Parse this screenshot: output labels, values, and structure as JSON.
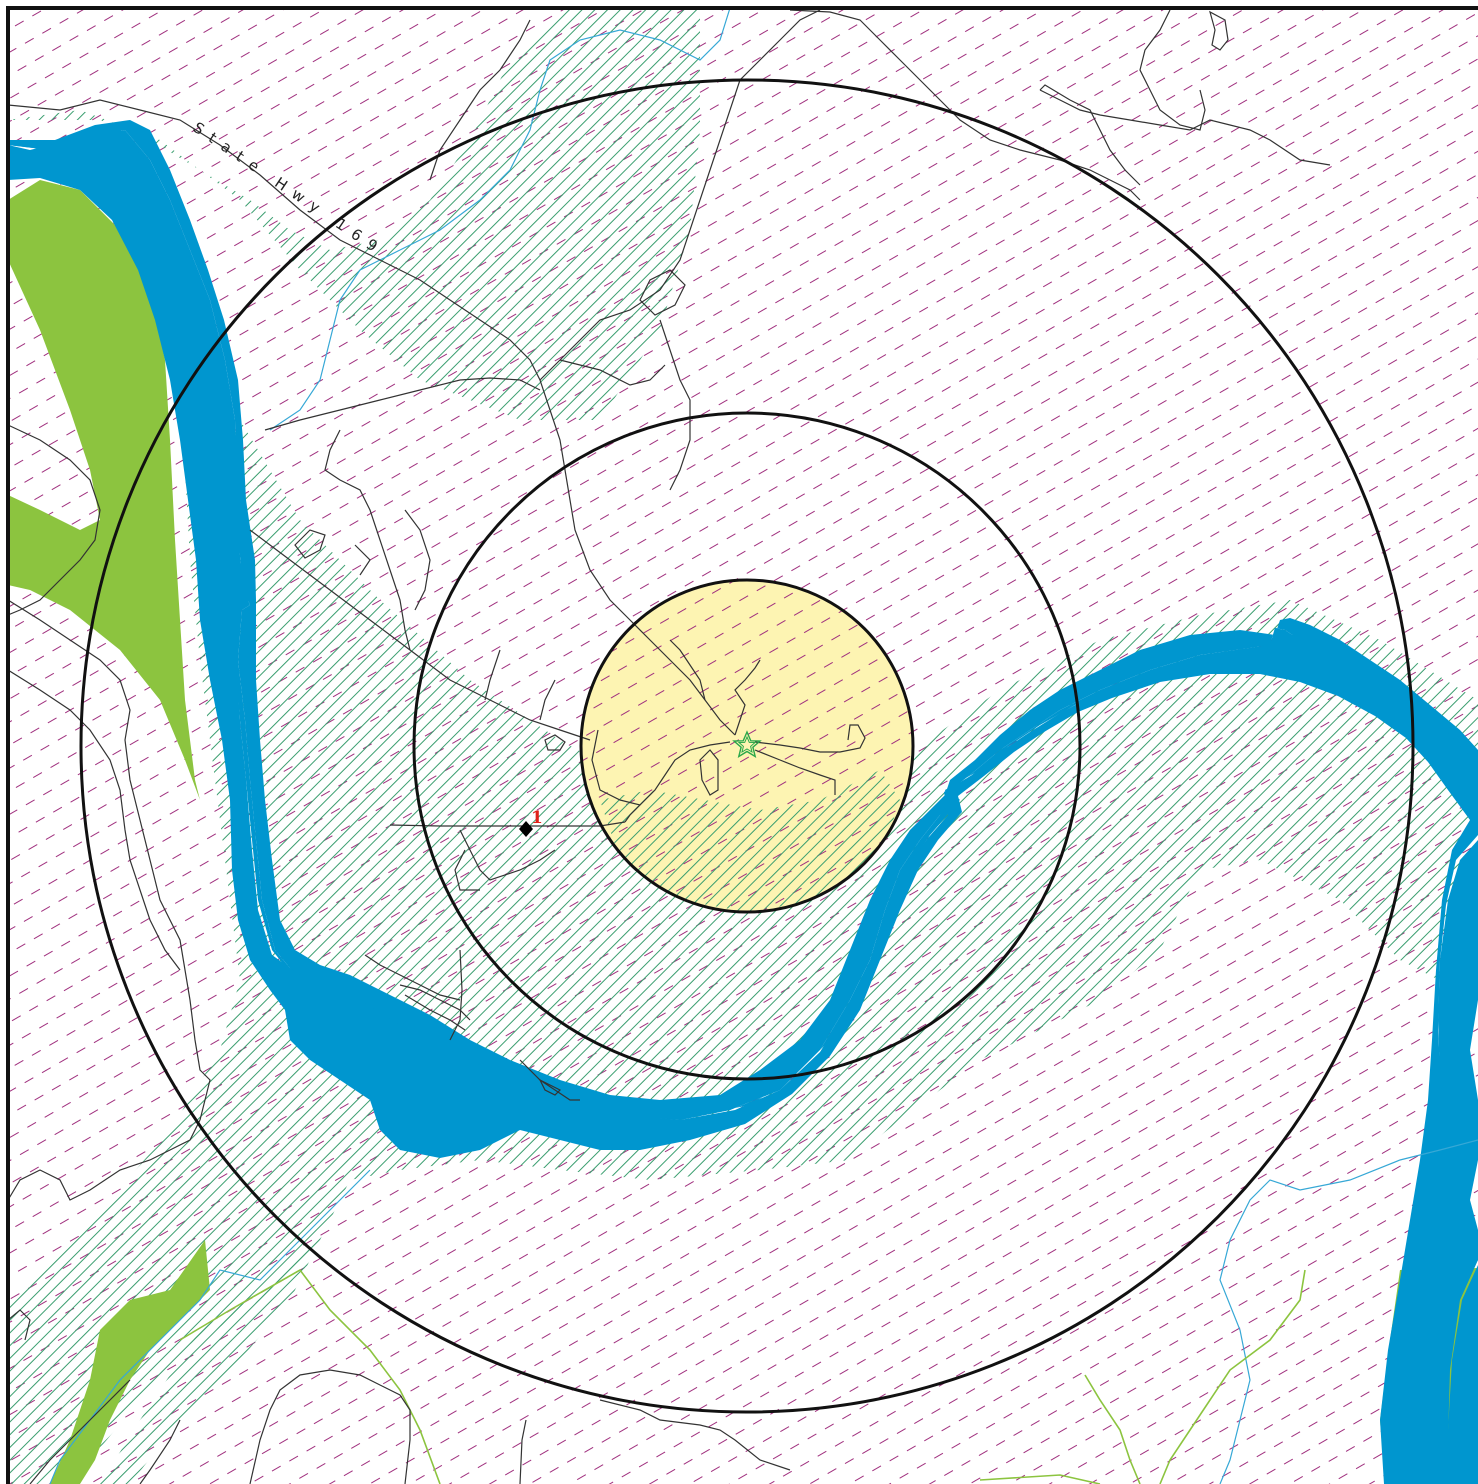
{
  "map": {
    "road_labels": [
      {
        "id": "state-hwy-169",
        "text": "State Hwy 169"
      }
    ],
    "site_labels": [
      {
        "id": "site-1",
        "text": "1"
      }
    ],
    "symbols": {
      "center": "star-icon",
      "site": "diamond-icon"
    },
    "colors": {
      "river": "#0096cf",
      "wetland_fill": "#8cc43f",
      "wetland_hatch": "#3a9e6f",
      "background_hatch": "#a0307e",
      "center_zone": "#fdf4b2",
      "ring": "#111111",
      "road": "#333333",
      "stream": "#36a8d6",
      "trail": "#8cc43f",
      "site_marker": "#000000",
      "site_label": "#e0221b",
      "center_marker": "#2aa84a"
    }
  }
}
